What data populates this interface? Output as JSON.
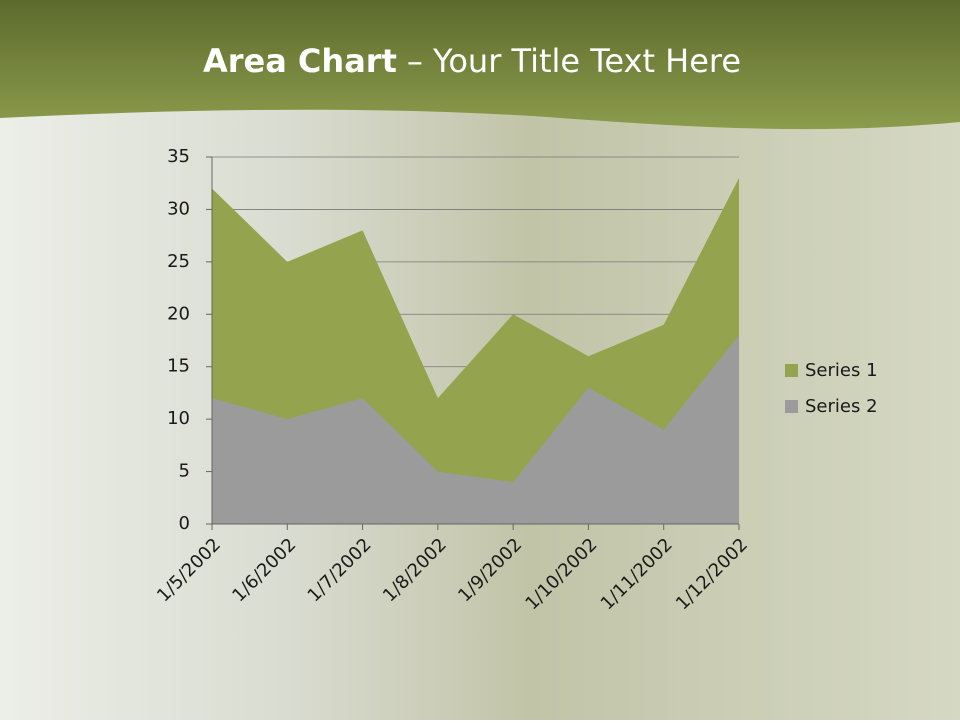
{
  "header": {
    "title_bold": "Area Chart",
    "title_rest": "– Your Title Text Here"
  },
  "chart_data": {
    "type": "area",
    "categories": [
      "1/5/2002",
      "1/6/2002",
      "1/7/2002",
      "1/8/2002",
      "1/9/2002",
      "1/10/2002",
      "1/11/2002",
      "1/12/2002"
    ],
    "series": [
      {
        "name": "Series 1",
        "color": "#94a34e",
        "values": [
          32,
          25,
          28,
          12,
          20,
          16,
          19,
          33
        ]
      },
      {
        "name": "Series 2",
        "color": "#9b9b9b",
        "values": [
          12,
          10,
          12,
          5,
          4,
          13,
          9,
          18
        ]
      }
    ],
    "ylim": [
      0,
      35
    ],
    "yticks": [
      0,
      5,
      10,
      15,
      20,
      25,
      30,
      35
    ],
    "grid": true,
    "legend": "right"
  }
}
